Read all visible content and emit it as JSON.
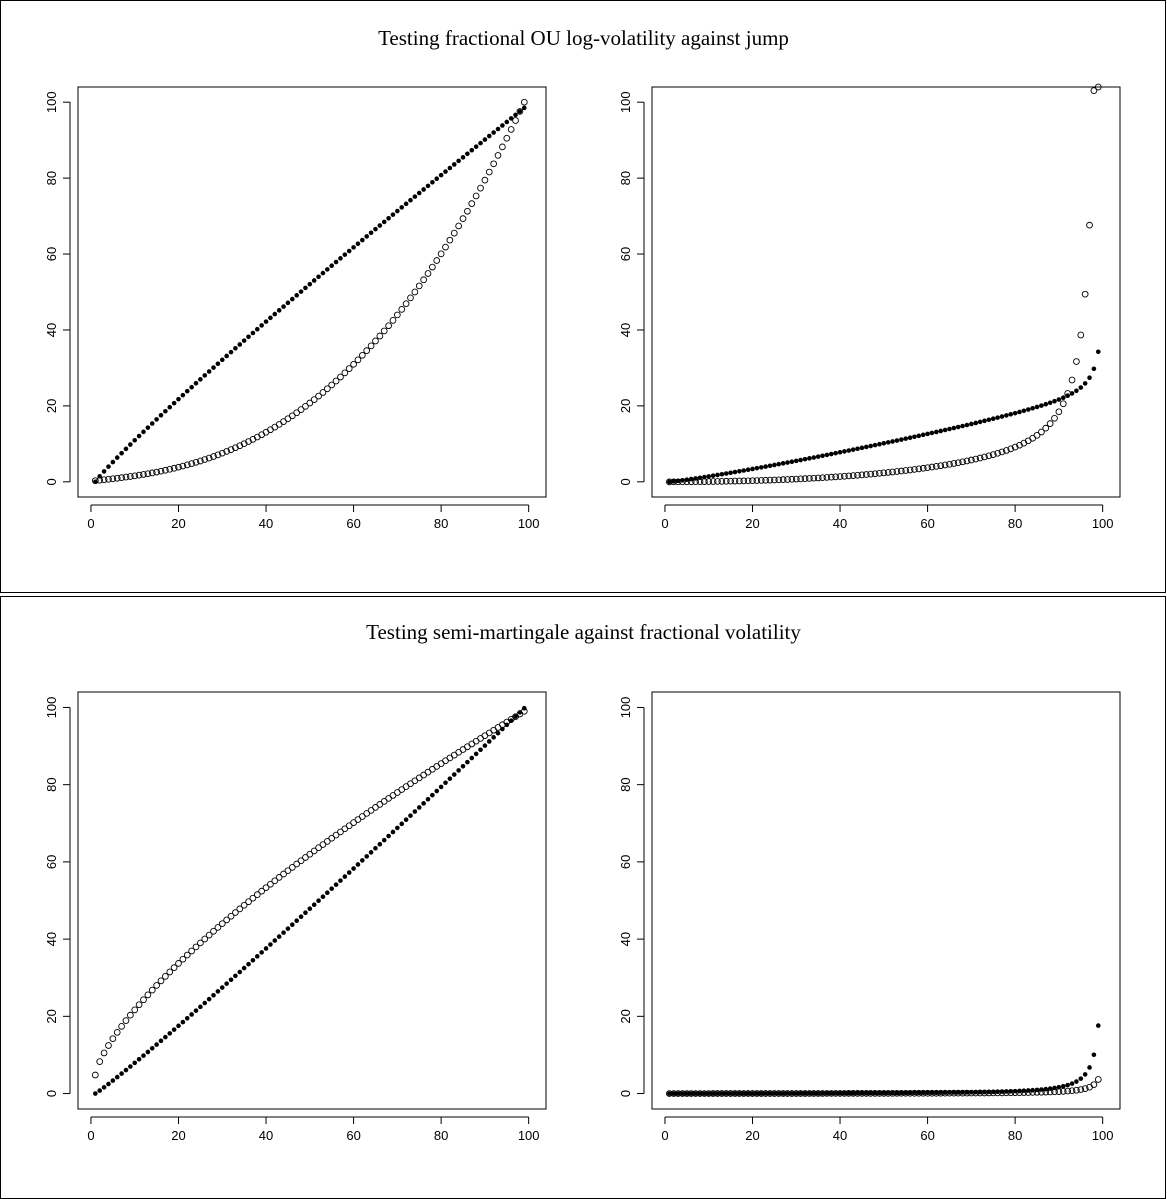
{
  "figure": {
    "top_title": "Testing fractional OU log-volatility against jump",
    "bottom_title": "Testing semi-martingale against fractional volatility"
  },
  "chart_data": [
    {
      "id": "top-left",
      "type": "scatter",
      "title": "",
      "xlim": [
        1,
        100
      ],
      "ylim": [
        0,
        100
      ],
      "xticks": [
        0,
        20,
        40,
        60,
        80,
        100
      ],
      "yticks": [
        0,
        20,
        40,
        60,
        80,
        100
      ],
      "series": [
        {
          "marker": "open-circle",
          "generator": {
            "kind": "power",
            "n": 99,
            "y0": 0.3,
            "y1": 100,
            "p": 2.6,
            "lin": 0.12
          }
        },
        {
          "marker": "filled-dot",
          "generator": {
            "kind": "power",
            "n": 99,
            "y0": 0,
            "y1": 98.5,
            "p": 0.92,
            "lin": 0
          }
        }
      ]
    },
    {
      "id": "top-right",
      "type": "scatter",
      "title": "",
      "xlim": [
        1,
        100
      ],
      "ylim": [
        0,
        100
      ],
      "xticks": [
        0,
        20,
        40,
        60,
        80,
        100
      ],
      "yticks": [
        0,
        20,
        40,
        60,
        80,
        100
      ],
      "series": [
        {
          "marker": "open-circle",
          "generator": {
            "kind": "tail",
            "n": 99,
            "a": 0.0,
            "b": 9.0,
            "p": 2.4,
            "c": 0.35,
            "d": 1.6
          }
        },
        {
          "marker": "filled-dot",
          "generator": {
            "kind": "tail",
            "n": 99,
            "a": 0.0,
            "b": 22.0,
            "p": 1.15,
            "c": 0.25,
            "d": 1.0
          }
        }
      ]
    },
    {
      "id": "bottom-left",
      "type": "scatter",
      "title": "",
      "xlim": [
        1,
        100
      ],
      "ylim": [
        0,
        100
      ],
      "xticks": [
        0,
        20,
        40,
        60,
        80,
        100
      ],
      "yticks": [
        0,
        20,
        40,
        60,
        80,
        100
      ],
      "series": [
        {
          "marker": "open-circle",
          "generator": {
            "kind": "power",
            "n": 99,
            "y0": 4.8,
            "y1": 99,
            "p": 0.72,
            "lin": 0
          }
        },
        {
          "marker": "filled-dot",
          "generator": {
            "kind": "power",
            "n": 99,
            "y0": 0,
            "y1": 99.8,
            "p": 1.06,
            "lin": 0
          }
        }
      ]
    },
    {
      "id": "bottom-right",
      "type": "scatter",
      "title": "",
      "xlim": [
        1,
        100
      ],
      "ylim": [
        0,
        100
      ],
      "xticks": [
        0,
        20,
        40,
        60,
        80,
        100
      ],
      "yticks": [
        0,
        20,
        40,
        60,
        80,
        100
      ],
      "series": [
        {
          "marker": "open-circle",
          "generator": {
            "kind": "tail",
            "n": 99,
            "a": 0.0,
            "b": 0.0,
            "p": 1,
            "c": 0.05,
            "d": 1.1
          }
        },
        {
          "marker": "filled-dot",
          "generator": {
            "kind": "tail",
            "n": 99,
            "a": 0.0,
            "b": 0.0,
            "p": 1,
            "c": 0.09,
            "d": 1.35
          }
        }
      ]
    }
  ]
}
